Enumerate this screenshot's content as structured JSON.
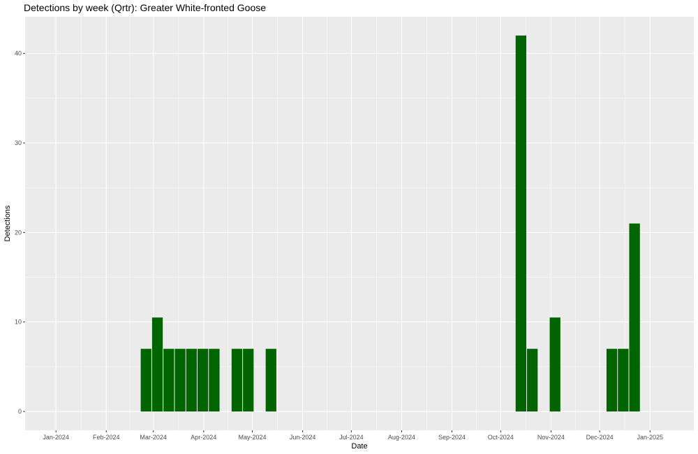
{
  "chart_data": {
    "type": "bar",
    "title": "Detections by week (Qrtr): Greater White-fronted Goose",
    "xlabel": "Date",
    "ylabel": "Detections",
    "x_tick_labels": [
      "Jan-2024",
      "Feb-2024",
      "Mar-2024",
      "Apr-2024",
      "May-2024",
      "Jun-2024",
      "Jul-2024",
      "Aug-2024",
      "Sep-2024",
      "Oct-2024",
      "Nov-2024",
      "Dec-2024",
      "Jan-2025"
    ],
    "y_ticks": [
      0,
      10,
      20,
      30,
      40
    ],
    "ylim": [
      -2.1,
      44.1
    ],
    "xlim": [
      "2023-12-13",
      "2025-01-28"
    ],
    "grid": true,
    "bar_color": "#006400",
    "panel_color": "#ebebeb",
    "grid_color": "#ffffff",
    "bars": [
      {
        "week_start": "2024-02-22",
        "value": 7
      },
      {
        "week_start": "2024-02-29",
        "value": 10.5
      },
      {
        "week_start": "2024-03-07",
        "value": 7
      },
      {
        "week_start": "2024-03-14",
        "value": 7
      },
      {
        "week_start": "2024-03-21",
        "value": 7
      },
      {
        "week_start": "2024-03-28",
        "value": 7
      },
      {
        "week_start": "2024-04-04",
        "value": 7
      },
      {
        "week_start": "2024-04-18",
        "value": 7
      },
      {
        "week_start": "2024-04-25",
        "value": 7
      },
      {
        "week_start": "2024-05-09",
        "value": 7
      },
      {
        "week_start": "2024-10-10",
        "value": 42
      },
      {
        "week_start": "2024-10-17",
        "value": 7
      },
      {
        "week_start": "2024-10-31",
        "value": 10.5
      },
      {
        "week_start": "2024-12-05",
        "value": 7
      },
      {
        "week_start": "2024-12-12",
        "value": 7
      },
      {
        "week_start": "2024-12-19",
        "value": 21
      }
    ]
  }
}
